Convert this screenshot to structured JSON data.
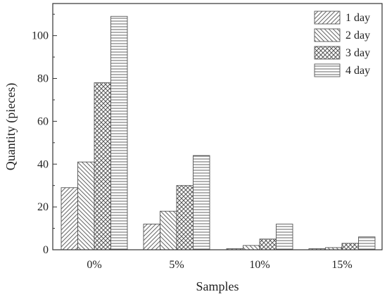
{
  "chart_data": {
    "type": "bar",
    "title": "",
    "xlabel": "Samples",
    "ylabel": "Quantity (pieces)",
    "categories": [
      "0%",
      "5%",
      "10%",
      "15%"
    ],
    "series": [
      {
        "name": "1 day",
        "values": [
          29,
          12,
          0.5,
          0.5
        ],
        "pattern": "diag-up"
      },
      {
        "name": "2 day",
        "values": [
          41,
          18,
          2,
          1
        ],
        "pattern": "diag-down"
      },
      {
        "name": "3 day",
        "values": [
          78,
          30,
          5,
          3
        ],
        "pattern": "crosshatch"
      },
      {
        "name": "4 day",
        "values": [
          109,
          44,
          12,
          6
        ],
        "pattern": "horizontal"
      }
    ],
    "ylim": [
      0,
      115
    ],
    "yticks": [
      "0",
      "20",
      "40",
      "60",
      "80",
      "100"
    ],
    "grid": false,
    "legend_position": "top-right",
    "bar_fill": "#ffffff",
    "bar_stroke": "#555555"
  }
}
